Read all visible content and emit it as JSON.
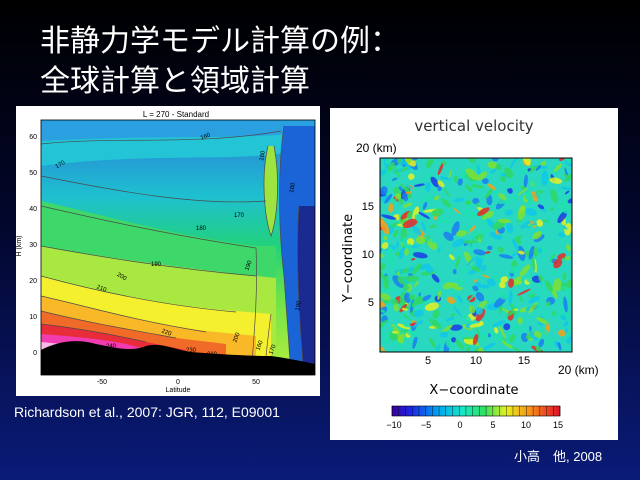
{
  "slide": {
    "title_line1": "非静力学モデル計算の例：",
    "title_line2": "全球計算と領域計算"
  },
  "left_figure": {
    "plot_title": "L = 270 - Standard",
    "y_axis_label": "H (km)",
    "x_axis_label": "Latitude",
    "y_ticks": [
      "0",
      "10",
      "20",
      "30",
      "40",
      "50",
      "60"
    ],
    "x_ticks": [
      "-50",
      "0",
      "50"
    ],
    "contour_labels": [
      "170",
      "180",
      "190",
      "200",
      "210",
      "220",
      "230",
      "240",
      "160",
      "170",
      "180",
      "190",
      "200",
      "210",
      "160",
      "170",
      "180",
      "190"
    ],
    "caption": "Richardson et al., 2007: JGR, 112, E09001"
  },
  "right_figure": {
    "plot_title": "vertical velocity",
    "y_range_label": "20 (km)",
    "x_range_label": "20 (km)",
    "y_axis_label": "Y−coordinate",
    "x_axis_label": "X−coordinate",
    "y_ticks": [
      "5",
      "10",
      "15"
    ],
    "x_ticks": [
      "5",
      "10",
      "15"
    ],
    "colorbar_ticks": [
      "−10",
      "−5",
      "0",
      "5",
      "10",
      "15"
    ],
    "caption": "小高　他, 2008"
  },
  "colors": {
    "background_top": "#000000",
    "background_bottom": "#0a1b78",
    "text": "#ffffff"
  }
}
